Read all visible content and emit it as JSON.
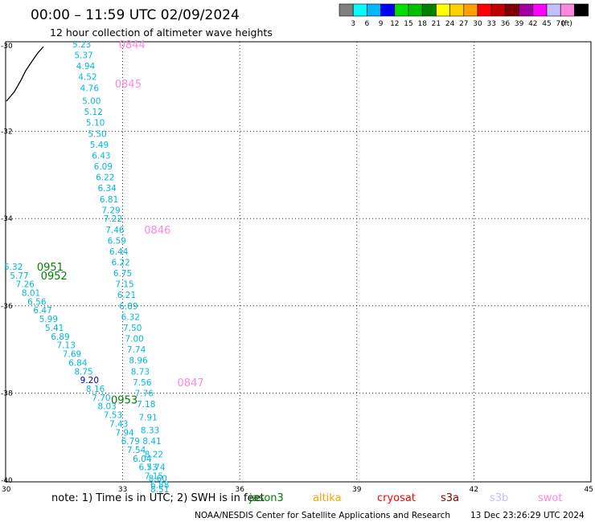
{
  "title": "00:00 – 11:59 UTC 02/09/2024",
  "subtitle": "12 hour collection of altimeter wave heights",
  "legend": {
    "colors": [
      "#808080",
      "#00ffff",
      "#00b8ff",
      "#0000ff",
      "#00e000",
      "#00c000",
      "#008000",
      "#ffff00",
      "#ffd000",
      "#ffa000",
      "#ff0000",
      "#c00000",
      "#800000",
      "#a000a0",
      "#ff00ff",
      "#c0c0ff",
      "#ff88dd",
      "#000000"
    ],
    "labels": [
      "3",
      "6",
      "9",
      "12",
      "15",
      "18",
      "21",
      "24",
      "27",
      "30",
      "33",
      "36",
      "39",
      "42",
      "45",
      "70",
      "(ft)"
    ]
  },
  "axis": {
    "x_ticks": [
      "30",
      "33",
      "36",
      "39",
      "42",
      "45"
    ],
    "y_ticks": [
      "-30",
      "-32",
      "-34",
      "-36",
      "-38",
      "-40"
    ]
  },
  "note": "note: 1) Time is in UTC; 2) SWH is in feet",
  "satellites": [
    {
      "name": "jason3",
      "color": "#008000"
    },
    {
      "name": "altika",
      "color": "#ffa000"
    },
    {
      "name": "cryosat",
      "color": "#ff0000"
    },
    {
      "name": "s3a",
      "color": "#800000"
    },
    {
      "name": "s3b",
      "color": "#c0c0ff"
    },
    {
      "name": "swot",
      "color": "#ff88dd"
    }
  ],
  "credit": "NOAA/NESDIS Center for Satellite Applications and Research",
  "timestamp": "13 Dec 23:26:29 UTC 2024",
  "swh_color": "#00b8e0",
  "swh_dark_color": "#0000c8",
  "pass_labels": [
    {
      "text": "0844",
      "lon": 32.9,
      "lat": -30.0,
      "color": "#ff88dd"
    },
    {
      "text": "0845",
      "lon": 32.8,
      "lat": -30.9,
      "color": "#ff88dd"
    },
    {
      "text": "0846",
      "lon": 33.55,
      "lat": -34.25,
      "color": "#ff88dd"
    },
    {
      "text": "0847",
      "lon": 34.4,
      "lat": -37.75,
      "color": "#ff88dd"
    },
    {
      "text": "0951",
      "lon": 30.8,
      "lat": -35.1,
      "color": "#008000"
    },
    {
      "text": "0952",
      "lon": 30.9,
      "lat": -35.3,
      "color": "#008000"
    },
    {
      "text": "0953",
      "lon": 32.7,
      "lat": -38.15,
      "color": "#008000"
    }
  ],
  "swh": [
    {
      "v": "5.23",
      "lon": 31.95,
      "lat": -30.0
    },
    {
      "v": "5.37",
      "lon": 32.0,
      "lat": -30.25
    },
    {
      "v": "4.94",
      "lon": 32.05,
      "lat": -30.5
    },
    {
      "v": "4.52",
      "lon": 32.1,
      "lat": -30.75
    },
    {
      "v": "4.76",
      "lon": 32.15,
      "lat": -31.0
    },
    {
      "v": "5.00",
      "lon": 32.2,
      "lat": -31.3
    },
    {
      "v": "5.12",
      "lon": 32.25,
      "lat": -31.55
    },
    {
      "v": "5.10",
      "lon": 32.3,
      "lat": -31.8
    },
    {
      "v": "5.50",
      "lon": 32.35,
      "lat": -32.05
    },
    {
      "v": "5.49",
      "lon": 32.4,
      "lat": -32.3
    },
    {
      "v": "6.43",
      "lon": 32.45,
      "lat": -32.55
    },
    {
      "v": "6.09",
      "lon": 32.5,
      "lat": -32.8
    },
    {
      "v": "6.22",
      "lon": 32.55,
      "lat": -33.05
    },
    {
      "v": "6.34",
      "lon": 32.6,
      "lat": -33.3
    },
    {
      "v": "6.81",
      "lon": 32.65,
      "lat": -33.55
    },
    {
      "v": "7.29",
      "lon": 32.7,
      "lat": -33.8
    },
    {
      "v": "7.22",
      "lon": 32.75,
      "lat": -34.0
    },
    {
      "v": "7.46",
      "lon": 32.8,
      "lat": -34.25
    },
    {
      "v": "6.59",
      "lon": 32.85,
      "lat": -34.5
    },
    {
      "v": "6.44",
      "lon": 32.9,
      "lat": -34.75
    },
    {
      "v": "6.22",
      "lon": 32.95,
      "lat": -35.0
    },
    {
      "v": "6.75",
      "lon": 33.0,
      "lat": -35.25
    },
    {
      "v": "7.15",
      "lon": 33.05,
      "lat": -35.5
    },
    {
      "v": "6.21",
      "lon": 33.1,
      "lat": -35.75
    },
    {
      "v": "6.89",
      "lon": 33.15,
      "lat": -36.0
    },
    {
      "v": "6.32",
      "lon": 33.2,
      "lat": -36.25
    },
    {
      "v": "7.50",
      "lon": 33.25,
      "lat": -36.5
    },
    {
      "v": "7.00",
      "lon": 33.3,
      "lat": -36.75
    },
    {
      "v": "7.74",
      "lon": 33.35,
      "lat": -37.0
    },
    {
      "v": "8.96",
      "lon": 33.4,
      "lat": -37.25
    },
    {
      "v": "8.73",
      "lon": 33.45,
      "lat": -37.5
    },
    {
      "v": "7.56",
      "lon": 33.5,
      "lat": -37.75
    },
    {
      "v": "7.76",
      "lon": 33.55,
      "lat": -38.0
    },
    {
      "v": "7.18",
      "lon": 33.6,
      "lat": -38.25
    },
    {
      "v": "7.91",
      "lon": 33.65,
      "lat": -38.55
    },
    {
      "v": "8.33",
      "lon": 33.7,
      "lat": -38.85
    },
    {
      "v": "8.41",
      "lon": 33.75,
      "lat": -39.1
    },
    {
      "v": "8.22",
      "lon": 33.8,
      "lat": -39.4
    },
    {
      "v": "7.74",
      "lon": 33.85,
      "lat": -39.7
    },
    {
      "v": "8.60",
      "lon": 33.9,
      "lat": -39.95
    },
    {
      "v": "8.51",
      "lon": 33.95,
      "lat": -40.2
    },
    {
      "v": "5.32",
      "lon": 30.2,
      "lat": -35.1
    },
    {
      "v": "5.77",
      "lon": 30.35,
      "lat": -35.3
    },
    {
      "v": "7.26",
      "lon": 30.5,
      "lat": -35.5
    },
    {
      "v": "8.01",
      "lon": 30.65,
      "lat": -35.7
    },
    {
      "v": "6.56",
      "lon": 30.8,
      "lat": -35.9
    },
    {
      "v": "6.47",
      "lon": 30.95,
      "lat": -36.1
    },
    {
      "v": "5.99",
      "lon": 31.1,
      "lat": -36.3
    },
    {
      "v": "5.41",
      "lon": 31.25,
      "lat": -36.5
    },
    {
      "v": "6.89",
      "lon": 31.4,
      "lat": -36.7
    },
    {
      "v": "7.13",
      "lon": 31.55,
      "lat": -36.9
    },
    {
      "v": "7.69",
      "lon": 31.7,
      "lat": -37.1
    },
    {
      "v": "6.84",
      "lon": 31.85,
      "lat": -37.3
    },
    {
      "v": "8.75",
      "lon": 32.0,
      "lat": -37.5
    },
    {
      "v": "9.20",
      "lon": 32.15,
      "lat": -37.7,
      "dark": true
    },
    {
      "v": "8.16",
      "lon": 32.3,
      "lat": -37.9
    },
    {
      "v": "7.70",
      "lon": 32.45,
      "lat": -38.1
    },
    {
      "v": "8.03",
      "lon": 32.6,
      "lat": -38.3
    },
    {
      "v": "7.53",
      "lon": 32.75,
      "lat": -38.5
    },
    {
      "v": "7.43",
      "lon": 32.9,
      "lat": -38.7
    },
    {
      "v": "7.94",
      "lon": 33.05,
      "lat": -38.9
    },
    {
      "v": "6.79",
      "lon": 33.2,
      "lat": -39.1
    },
    {
      "v": "7.54",
      "lon": 33.35,
      "lat": -39.3
    },
    {
      "v": "6.04",
      "lon": 33.5,
      "lat": -39.5
    },
    {
      "v": "6.53",
      "lon": 33.65,
      "lat": -39.7
    },
    {
      "v": "7.15",
      "lon": 33.8,
      "lat": -39.9
    },
    {
      "v": "6.88",
      "lon": 33.95,
      "lat": -40.1
    }
  ]
}
